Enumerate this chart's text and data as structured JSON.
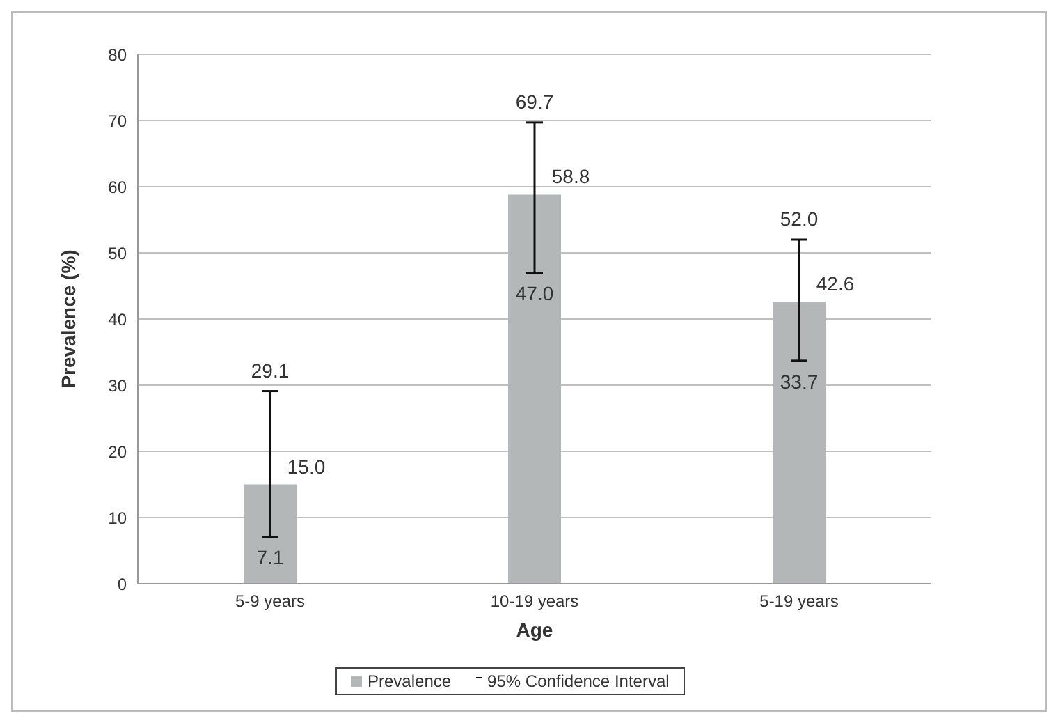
{
  "chart_data": {
    "type": "bar",
    "xlabel": "Age",
    "ylabel": "Prevalence (%)",
    "categories": [
      "5-9 years",
      "10-19 years",
      "5-19 years"
    ],
    "series": [
      {
        "name": "Prevalence",
        "color": "#b3b7b7",
        "values": [
          15.0,
          58.8,
          42.6
        ],
        "value_labels": [
          "15.0",
          "58.8",
          "42.6"
        ],
        "errors": [
          [
            7.1,
            29.1
          ],
          [
            47.0,
            69.7
          ],
          [
            33.7,
            52.0
          ]
        ]
      }
    ],
    "ylim": [
      0,
      80
    ],
    "yticks": [
      0,
      10,
      20,
      30,
      40,
      50,
      60,
      70,
      80
    ],
    "grid": "y",
    "legend": "bottom",
    "annotations": [
      "95% Confidence Interval",
      {
        "text": "29.1",
        "x": "5-9 years",
        "y": 29.1
      },
      {
        "text": "7.1",
        "x": "5-9 years",
        "y": 7.1
      },
      {
        "text": "69.7",
        "x": "10-19 years",
        "y": 69.7
      },
      {
        "text": "47.0",
        "x": "10-19 years",
        "y": 47.0
      },
      {
        "text": "52.0",
        "x": "5-19 years",
        "y": 52.0
      },
      {
        "text": "33.7",
        "x": "5-19 years",
        "y": 33.7
      }
    ]
  }
}
